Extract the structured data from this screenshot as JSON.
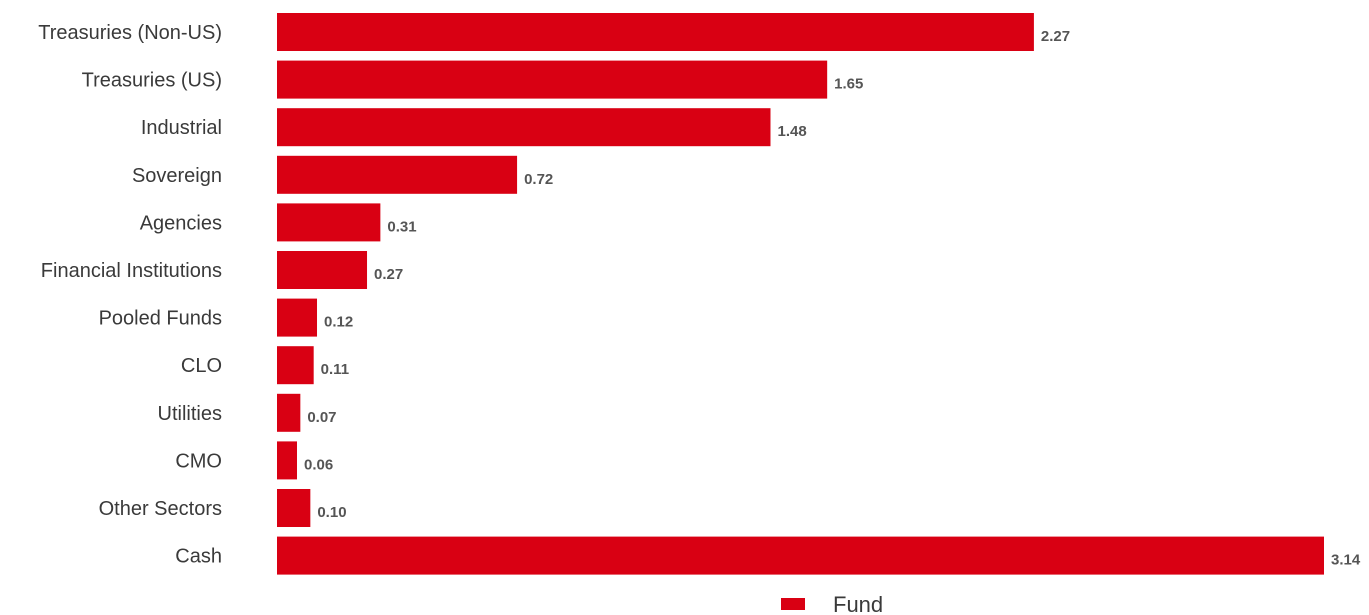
{
  "chart_data": {
    "type": "bar",
    "orientation": "horizontal",
    "categories": [
      "Treasuries (Non-US)",
      "Treasuries (US)",
      "Industrial",
      "Sovereign",
      "Agencies",
      "Financial Institutions",
      "Pooled Funds",
      "CLO",
      "Utilities",
      "CMO",
      "Other Sectors",
      "Cash"
    ],
    "series": [
      {
        "name": "Fund",
        "values": [
          2.27,
          1.65,
          1.48,
          0.72,
          0.31,
          0.27,
          0.12,
          0.11,
          0.07,
          0.06,
          0.1,
          3.14
        ],
        "value_labels": [
          "2.27",
          "1.65",
          "1.48",
          "0.72",
          "0.31",
          "0.27",
          "0.12",
          "0.11",
          "0.07",
          "0.06",
          "0.10",
          "3.14"
        ]
      }
    ],
    "colors": {
      "bar": "#d90013",
      "category_text": "#3a3a3a",
      "value_text": "#555555"
    },
    "xlim": [
      0,
      3.14
    ],
    "grid": false,
    "axes_visible": false,
    "legend_position": "bottom-center"
  }
}
